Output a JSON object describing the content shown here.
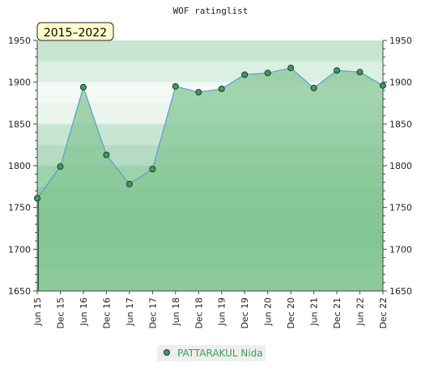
{
  "chart_data": {
    "type": "area",
    "title": "WOF ratinglist",
    "period_label": "2015–2022",
    "categories": [
      "Jun 15",
      "Dec 15",
      "Jun 16",
      "Dec 16",
      "Jun 17",
      "Dec 17",
      "Jun 18",
      "Dec 18",
      "Jun 19",
      "Dec 19",
      "Jun 20",
      "Dec 20",
      "Jun 21",
      "Dec 21",
      "Jun 22",
      "Dec 22"
    ],
    "series": [
      {
        "name": "PATTARAKUL Nida",
        "values": [
          1761,
          1799,
          1894,
          1813,
          1778,
          1796,
          1895,
          1888,
          1892,
          1909,
          1911,
          1917,
          1893,
          1914,
          1912,
          1896
        ]
      }
    ],
    "ylim": [
      1650,
      1950
    ],
    "y_ticks": [
      1650,
      1700,
      1750,
      1800,
      1850,
      1900,
      1950
    ],
    "xlabel": "",
    "ylabel": "",
    "grid": true,
    "legend_position": "bottom",
    "colors": {
      "line": "#5b9bd5",
      "fill": "#86c795",
      "marker": "#3f9a5e",
      "marker_edge": "#1d3a27",
      "legend_text": "#3aa05a",
      "badge_fill": "#ffffcc"
    }
  }
}
